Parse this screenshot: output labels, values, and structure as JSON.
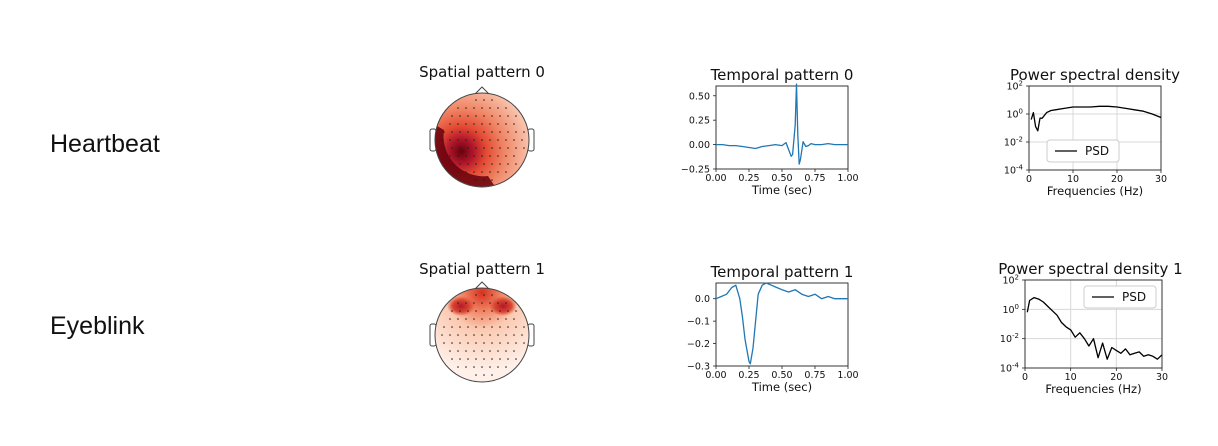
{
  "rows": [
    {
      "label": "Heartbeat"
    },
    {
      "label": "Eyeblink"
    }
  ],
  "chart_data": [
    {
      "type": "heatmap",
      "title": "Spatial pattern 0",
      "description_colormap": "Reds",
      "accent": "#c0392b"
    },
    {
      "type": "line",
      "title": "Temporal pattern 0",
      "xlabel": "Time (sec)",
      "ylabel": "",
      "xlim": [
        0.0,
        1.0
      ],
      "ylim": [
        -0.25,
        0.6
      ],
      "xticks": [
        "0.00",
        "0.25",
        "0.50",
        "0.75",
        "1.00"
      ],
      "yticks": [
        "−0.25",
        "0.00",
        "0.25",
        "0.50"
      ],
      "ytick_values": [
        -0.25,
        0.0,
        0.25,
        0.5
      ],
      "xtick_values": [
        0,
        0.25,
        0.5,
        0.75,
        1.0
      ],
      "color": "#1f77b4",
      "x": [
        0.0,
        0.05,
        0.1,
        0.15,
        0.2,
        0.25,
        0.3,
        0.35,
        0.4,
        0.45,
        0.5,
        0.53,
        0.55,
        0.57,
        0.58,
        0.6,
        0.61,
        0.62,
        0.63,
        0.64,
        0.66,
        0.68,
        0.7,
        0.72,
        0.75,
        0.8,
        0.85,
        0.9,
        0.95,
        1.0
      ],
      "y": [
        0.0,
        0.0,
        -0.01,
        -0.01,
        -0.02,
        -0.03,
        -0.04,
        -0.02,
        -0.01,
        0.0,
        -0.01,
        0.02,
        -0.05,
        -0.12,
        -0.1,
        0.2,
        0.62,
        0.1,
        -0.2,
        -0.15,
        0.03,
        -0.02,
        -0.01,
        0.01,
        0.0,
        0.0,
        0.01,
        0.0,
        0.0,
        0.0
      ]
    },
    {
      "type": "line",
      "title": "Power spectral density",
      "xlabel": "Frequencies (Hz)",
      "ylabel": "",
      "xlim": [
        0,
        30
      ],
      "ylim_log10": [
        -4,
        2
      ],
      "yscale": "log",
      "xticks": [
        "0",
        "10",
        "20",
        "30"
      ],
      "xtick_values": [
        0,
        10,
        20,
        30
      ],
      "ytick_exps": [
        "2",
        "0",
        "-2",
        "-4"
      ],
      "ytick_values": [
        2,
        0,
        -2,
        -4
      ],
      "legend": "PSD",
      "legend_loc": "lower-center",
      "color": "#000000",
      "x": [
        0.5,
        1.0,
        1.5,
        2.0,
        2.5,
        3,
        4,
        5,
        6,
        8,
        10,
        12,
        14,
        16,
        18,
        20,
        22,
        24,
        26,
        28,
        30
      ],
      "y_log10": [
        -0.4,
        0.1,
        -0.9,
        -1.2,
        -0.3,
        -0.3,
        0.1,
        0.25,
        0.3,
        0.4,
        0.5,
        0.5,
        0.5,
        0.55,
        0.55,
        0.5,
        0.4,
        0.3,
        0.2,
        0.0,
        -0.25
      ]
    },
    {
      "type": "heatmap",
      "title": "Spatial pattern 1",
      "description_colormap": "Reds",
      "accent": "#c0392b"
    },
    {
      "type": "line",
      "title": "Temporal pattern 1",
      "xlabel": "Time (sec)",
      "ylabel": "",
      "xlim": [
        0.0,
        1.0
      ],
      "ylim": [
        -0.3,
        0.07
      ],
      "xticks": [
        "0.00",
        "0.25",
        "0.50",
        "0.75",
        "1.00"
      ],
      "yticks": [
        "0.0",
        "−0.1",
        "−0.2",
        "−0.3"
      ],
      "ytick_values": [
        0.0,
        -0.1,
        -0.2,
        -0.3
      ],
      "xtick_values": [
        0,
        0.25,
        0.5,
        0.75,
        1.0
      ],
      "color": "#1f77b4",
      "x": [
        0.0,
        0.04,
        0.08,
        0.12,
        0.15,
        0.18,
        0.2,
        0.22,
        0.25,
        0.26,
        0.28,
        0.3,
        0.32,
        0.35,
        0.38,
        0.42,
        0.46,
        0.5,
        0.55,
        0.6,
        0.65,
        0.7,
        0.75,
        0.8,
        0.85,
        0.9,
        0.95,
        1.0
      ],
      "y": [
        0.0,
        0.01,
        0.02,
        0.05,
        0.06,
        0.0,
        -0.08,
        -0.18,
        -0.28,
        -0.29,
        -0.22,
        -0.1,
        0.02,
        0.06,
        0.07,
        0.06,
        0.05,
        0.04,
        0.03,
        0.04,
        0.02,
        0.01,
        0.02,
        0.0,
        0.01,
        0.0,
        0.0,
        0.0
      ]
    },
    {
      "type": "line",
      "title": "Power spectral density 1",
      "xlabel": "Frequencies (Hz)",
      "ylabel": "",
      "xlim": [
        0,
        30
      ],
      "ylim_log10": [
        -4,
        2
      ],
      "yscale": "log",
      "xticks": [
        "0",
        "10",
        "20",
        "30"
      ],
      "xtick_values": [
        0,
        10,
        20,
        30
      ],
      "ytick_exps": [
        "2",
        "0",
        "-2",
        "-4"
      ],
      "ytick_values": [
        2,
        0,
        -2,
        -4
      ],
      "legend": "PSD",
      "legend_loc": "top-right",
      "color": "#000000",
      "x": [
        0.5,
        1,
        2,
        3,
        4,
        5,
        6,
        7,
        8,
        9,
        10,
        11,
        12,
        13,
        14,
        15,
        16,
        17,
        18,
        19,
        20,
        21,
        22,
        23,
        24,
        25,
        26,
        27,
        28,
        29,
        30
      ],
      "y_log10": [
        -0.2,
        0.6,
        0.8,
        0.7,
        0.5,
        0.2,
        -0.1,
        -0.4,
        -0.9,
        -1.2,
        -1.4,
        -1.9,
        -1.6,
        -2.0,
        -2.5,
        -2.0,
        -3.3,
        -2.3,
        -3.4,
        -2.6,
        -2.8,
        -3.0,
        -2.7,
        -3.1,
        -3.0,
        -2.9,
        -3.2,
        -3.1,
        -3.2,
        -3.4,
        -3.1
      ]
    }
  ]
}
